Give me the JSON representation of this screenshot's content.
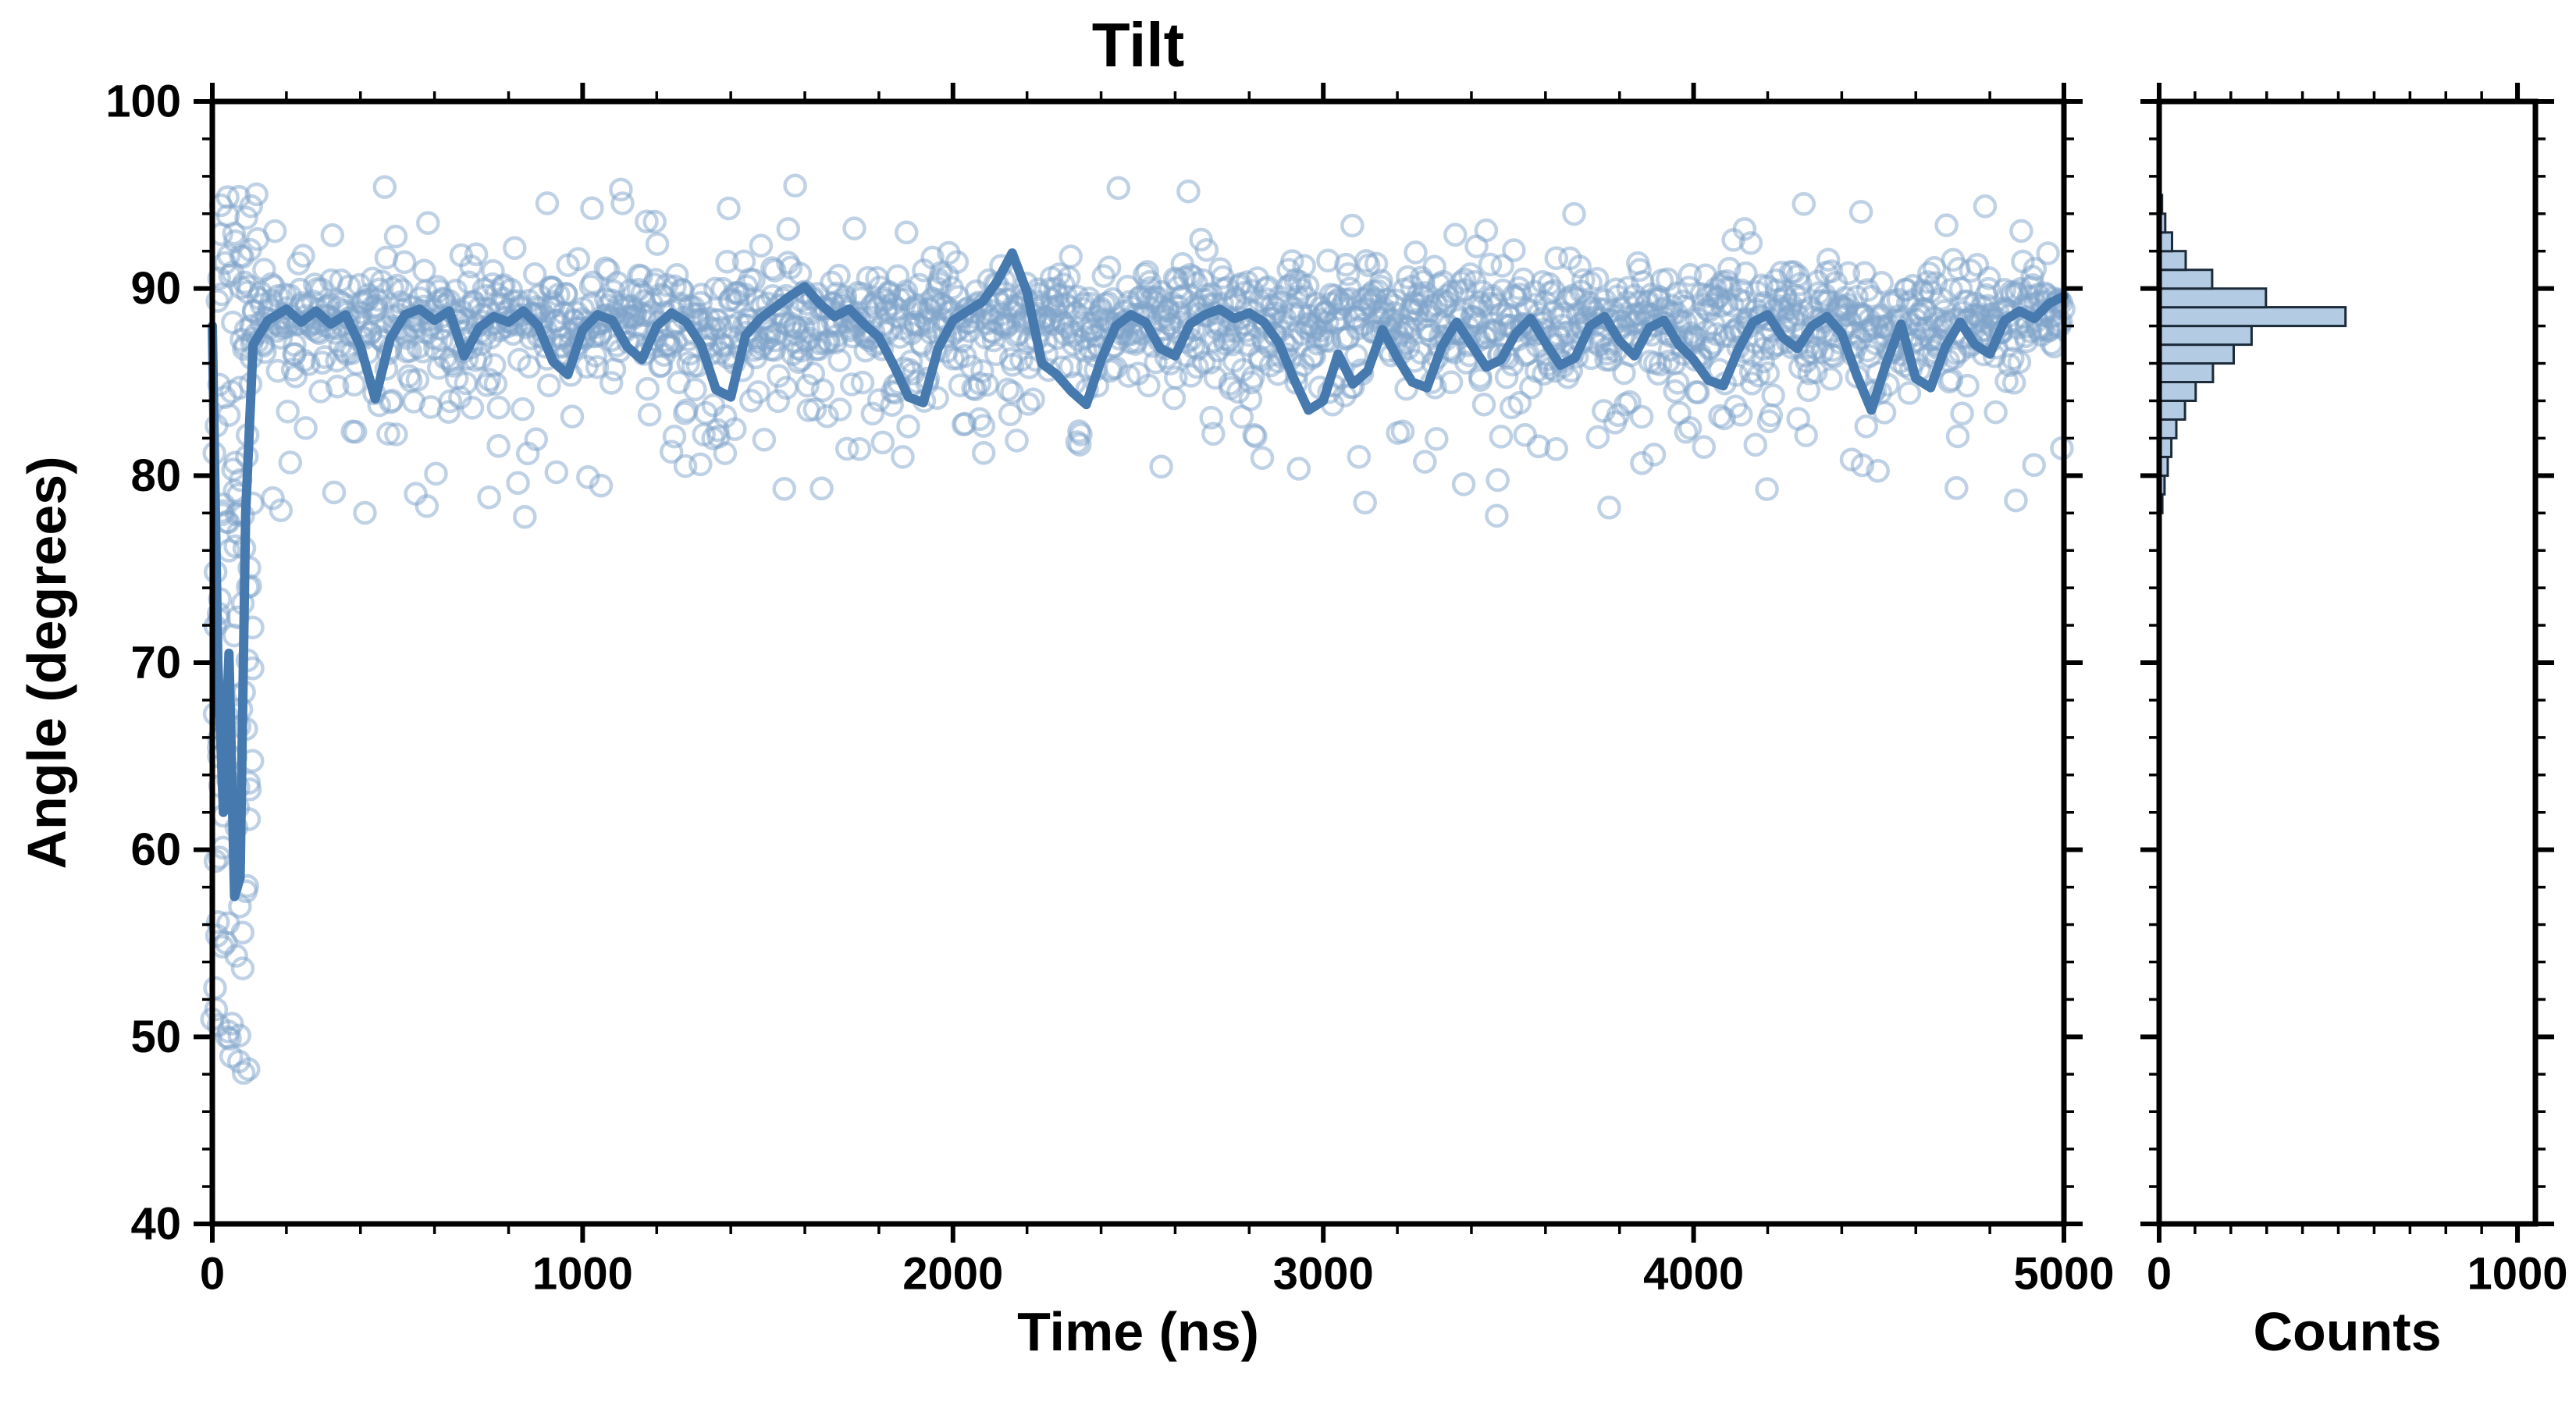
{
  "chart_data": {
    "type": "scatter",
    "title": "Tilt",
    "background": "#ffffff",
    "axes_color": "#000000",
    "panels": [
      {
        "id": "main",
        "xlabel": "Time (ns)",
        "ylabel": "Angle (degrees)",
        "xlim": [
          0,
          5000
        ],
        "ylim": [
          40,
          100
        ],
        "x_ticks": [
          0,
          1000,
          2000,
          3000,
          4000,
          5000
        ],
        "y_ticks": [
          40,
          50,
          60,
          70,
          80,
          90,
          100
        ],
        "x_minor_step": 200,
        "y_minor_step": 2
      },
      {
        "id": "hist",
        "xlabel": "Counts",
        "xlim": [
          0,
          1050
        ],
        "ylim": [
          40,
          100
        ],
        "x_ticks": [
          0,
          1000
        ],
        "y_ticks": [
          40,
          50,
          60,
          70,
          80,
          90,
          100
        ],
        "x_minor_step": 100,
        "y_minor_step": 2
      }
    ],
    "scatter": {
      "seed": 7,
      "n": 2000,
      "transient_n": 80,
      "transient_t_max": 110,
      "transient_y_range": [
        48,
        95.5
      ],
      "clip": [
        76.5,
        95.5
      ],
      "mixture": [
        {
          "w": 0.74,
          "mean": 88.6,
          "sd": 1.3
        },
        {
          "w": 0.18,
          "mean": 86.3,
          "sd": 1.8
        },
        {
          "w": 0.045,
          "mean": 83.0,
          "sd": 1.5
        },
        {
          "w": 0.02,
          "mean": 80.0,
          "sd": 1.2
        },
        {
          "w": 0.015,
          "mean": 93.6,
          "sd": 0.9
        }
      ],
      "marker_color": "#7fa3c9",
      "marker_opacity": 0.5
    },
    "rolling_mean": {
      "color": "#4679ad",
      "points": [
        [
          0,
          88.0
        ],
        [
          15,
          70.0
        ],
        [
          30,
          62.0
        ],
        [
          45,
          70.5
        ],
        [
          60,
          57.5
        ],
        [
          75,
          58.5
        ],
        [
          90,
          78.0
        ],
        [
          110,
          87.0
        ],
        [
          150,
          88.3
        ],
        [
          200,
          88.9
        ],
        [
          240,
          88.2
        ],
        [
          280,
          88.8
        ],
        [
          320,
          88.1
        ],
        [
          360,
          88.6
        ],
        [
          400,
          86.9
        ],
        [
          440,
          84.1
        ],
        [
          480,
          87.3
        ],
        [
          520,
          88.6
        ],
        [
          560,
          88.9
        ],
        [
          600,
          88.3
        ],
        [
          640,
          88.8
        ],
        [
          680,
          86.4
        ],
        [
          720,
          87.9
        ],
        [
          760,
          88.5
        ],
        [
          800,
          88.2
        ],
        [
          840,
          88.8
        ],
        [
          880,
          88.0
        ],
        [
          920,
          86.1
        ],
        [
          960,
          85.4
        ],
        [
          1000,
          87.8
        ],
        [
          1040,
          88.6
        ],
        [
          1080,
          88.3
        ],
        [
          1120,
          86.9
        ],
        [
          1160,
          86.2
        ],
        [
          1200,
          88.0
        ],
        [
          1240,
          88.7
        ],
        [
          1280,
          88.2
        ],
        [
          1320,
          87.0
        ],
        [
          1360,
          84.6
        ],
        [
          1400,
          84.2
        ],
        [
          1440,
          87.5
        ],
        [
          1480,
          88.4
        ],
        [
          1520,
          89.0
        ],
        [
          1560,
          89.6
        ],
        [
          1600,
          90.1
        ],
        [
          1640,
          89.2
        ],
        [
          1680,
          88.5
        ],
        [
          1720,
          88.9
        ],
        [
          1760,
          88.1
        ],
        [
          1800,
          87.4
        ],
        [
          1840,
          85.9
        ],
        [
          1880,
          84.2
        ],
        [
          1920,
          83.9
        ],
        [
          1960,
          86.8
        ],
        [
          2000,
          88.3
        ],
        [
          2040,
          88.8
        ],
        [
          2080,
          89.3
        ],
        [
          2120,
          90.4
        ],
        [
          2160,
          91.9
        ],
        [
          2200,
          89.8
        ],
        [
          2240,
          86.0
        ],
        [
          2280,
          85.4
        ],
        [
          2320,
          84.5
        ],
        [
          2360,
          83.8
        ],
        [
          2400,
          86.2
        ],
        [
          2440,
          88.0
        ],
        [
          2480,
          88.6
        ],
        [
          2520,
          88.2
        ],
        [
          2560,
          86.8
        ],
        [
          2600,
          86.4
        ],
        [
          2640,
          88.1
        ],
        [
          2680,
          88.6
        ],
        [
          2720,
          88.9
        ],
        [
          2760,
          88.4
        ],
        [
          2800,
          88.7
        ],
        [
          2840,
          88.2
        ],
        [
          2880,
          87.1
        ],
        [
          2920,
          85.2
        ],
        [
          2960,
          83.5
        ],
        [
          3000,
          84.0
        ],
        [
          3040,
          86.5
        ],
        [
          3080,
          84.9
        ],
        [
          3120,
          85.6
        ],
        [
          3160,
          87.8
        ],
        [
          3200,
          86.3
        ],
        [
          3240,
          85.0
        ],
        [
          3280,
          84.7
        ],
        [
          3320,
          86.9
        ],
        [
          3360,
          88.2
        ],
        [
          3400,
          87.0
        ],
        [
          3440,
          85.8
        ],
        [
          3480,
          86.2
        ],
        [
          3520,
          87.6
        ],
        [
          3560,
          88.4
        ],
        [
          3600,
          87.1
        ],
        [
          3640,
          85.9
        ],
        [
          3680,
          86.3
        ],
        [
          3720,
          88.0
        ],
        [
          3760,
          88.5
        ],
        [
          3800,
          87.2
        ],
        [
          3840,
          86.4
        ],
        [
          3880,
          87.9
        ],
        [
          3920,
          88.3
        ],
        [
          3960,
          87.0
        ],
        [
          4000,
          86.2
        ],
        [
          4040,
          85.1
        ],
        [
          4080,
          84.8
        ],
        [
          4120,
          86.7
        ],
        [
          4160,
          88.2
        ],
        [
          4200,
          88.6
        ],
        [
          4240,
          87.4
        ],
        [
          4280,
          86.8
        ],
        [
          4320,
          88.0
        ],
        [
          4360,
          88.5
        ],
        [
          4400,
          87.6
        ],
        [
          4440,
          85.4
        ],
        [
          4480,
          83.5
        ],
        [
          4520,
          86.0
        ],
        [
          4560,
          88.1
        ],
        [
          4600,
          85.2
        ],
        [
          4640,
          84.7
        ],
        [
          4680,
          86.9
        ],
        [
          4720,
          88.2
        ],
        [
          4760,
          87.0
        ],
        [
          4800,
          86.5
        ],
        [
          4840,
          88.3
        ],
        [
          4880,
          88.8
        ],
        [
          4920,
          88.4
        ],
        [
          4960,
          89.2
        ],
        [
          5000,
          89.6
        ]
      ]
    },
    "histogram": {
      "bar_fill": "#b3cbe3",
      "bar_edge": "#1c2b3a",
      "bin_width": 1,
      "bins": [
        [
          47,
          1
        ],
        [
          49,
          1
        ],
        [
          51,
          2
        ],
        [
          53,
          1
        ],
        [
          55,
          2
        ],
        [
          57,
          2
        ],
        [
          59,
          1
        ],
        [
          61,
          1
        ],
        [
          63,
          1
        ],
        [
          65,
          1
        ],
        [
          67,
          1
        ],
        [
          69,
          1
        ],
        [
          71,
          1
        ],
        [
          73,
          1
        ],
        [
          75,
          1
        ],
        [
          76,
          2
        ],
        [
          77,
          4
        ],
        [
          78,
          9
        ],
        [
          79,
          15
        ],
        [
          80,
          24
        ],
        [
          81,
          34
        ],
        [
          82,
          48
        ],
        [
          83,
          72
        ],
        [
          84,
          102
        ],
        [
          85,
          150
        ],
        [
          86,
          208
        ],
        [
          87,
          258
        ],
        [
          88,
          520
        ],
        [
          89,
          298
        ],
        [
          90,
          148
        ],
        [
          91,
          74
        ],
        [
          92,
          36
        ],
        [
          93,
          17
        ],
        [
          94,
          8
        ],
        [
          95,
          3
        ]
      ]
    }
  }
}
